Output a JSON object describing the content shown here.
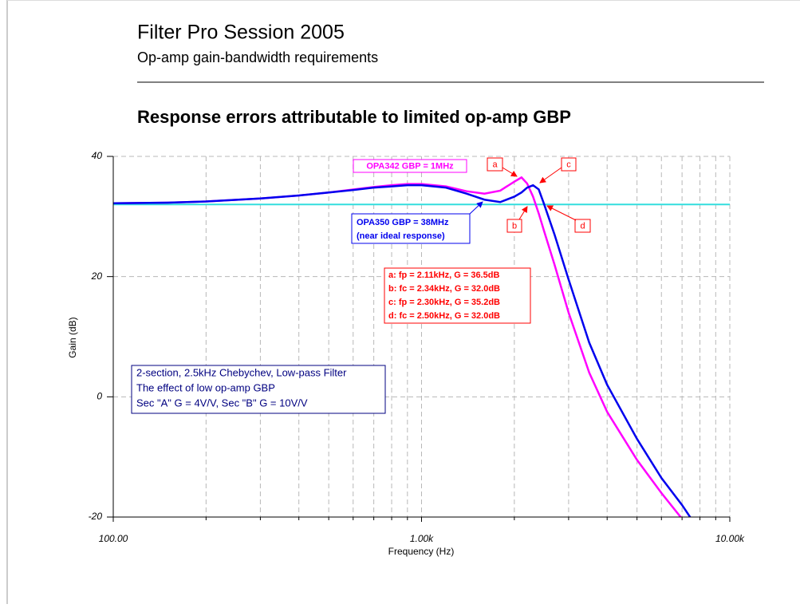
{
  "header": {
    "title": "Filter Pro Session 2005",
    "subtitle": "Op-amp gain-bandwidth requirements"
  },
  "chart_data": {
    "type": "line",
    "title": "Response errors attributable to limited op-amp GBP",
    "xlabel": "Frequency (Hz)",
    "ylabel": "Gain (dB)",
    "log_x": true,
    "grid": true,
    "xlim": [
      100,
      10000
    ],
    "xticks": [
      {
        "value": 100,
        "label": "100.00"
      },
      {
        "value": 1000,
        "label": "1.00k"
      },
      {
        "value": 10000,
        "label": "10.00k"
      }
    ],
    "xminorticks": [
      200,
      300,
      400,
      500,
      600,
      700,
      800,
      900,
      2000,
      3000,
      4000,
      5000,
      6000,
      7000,
      8000,
      9000
    ],
    "ylim": [
      -20,
      40
    ],
    "yticks": [
      -20,
      0,
      20,
      40
    ],
    "x": [
      100,
      150,
      200,
      300,
      400,
      500,
      600,
      700,
      800,
      900,
      1000,
      1200,
      1400,
      1600,
      1800,
      2000,
      2110,
      2200,
      2300,
      2400,
      2500,
      2700,
      3000,
      3500,
      4000,
      5000,
      6000,
      7000,
      7500
    ],
    "series": [
      {
        "name": "OPA342 GBP = 1MHz",
        "color": "#ff00ff",
        "values": [
          32.2,
          32.3,
          32.5,
          33.0,
          33.5,
          34.0,
          34.5,
          34.9,
          35.2,
          35.4,
          35.4,
          35.0,
          34.2,
          33.8,
          34.3,
          35.8,
          36.5,
          35.5,
          33.3,
          30.5,
          27.5,
          22.0,
          14.0,
          4.0,
          -2.5,
          -10.5,
          -16.0,
          -20.3,
          null
        ]
      },
      {
        "name": "OPA350 GBP = 38MHz",
        "color": "#0000ee",
        "values": [
          32.2,
          32.3,
          32.5,
          33.0,
          33.5,
          34.0,
          34.4,
          34.8,
          35.0,
          35.2,
          35.2,
          34.8,
          33.8,
          32.8,
          32.4,
          33.3,
          34.0,
          34.8,
          35.2,
          34.5,
          32.0,
          27.0,
          19.5,
          9.0,
          2.0,
          -7.0,
          -13.5,
          -18.0,
          -20.3
        ]
      }
    ],
    "reference_line": {
      "value": 32,
      "color": "#33dddd"
    },
    "annotations": [
      "(near ideal response)",
      "a",
      "b",
      "c",
      "d"
    ],
    "markers_info": [
      "a: fp = 2.11kHz, G = 36.5dB",
      "b: fc = 2.34kHz, G = 32.0dB",
      "c: fp = 2.30kHz, G = 35.2dB",
      "d: fc = 2.50kHz, G = 32.0dB"
    ],
    "note": [
      "2-section, 2.5kHz Chebychev, Low-pass Filter",
      "The effect of low op-amp GBP",
      "Sec \"A\" G = 4V/V, Sec \"B\" G = 10V/V"
    ]
  }
}
